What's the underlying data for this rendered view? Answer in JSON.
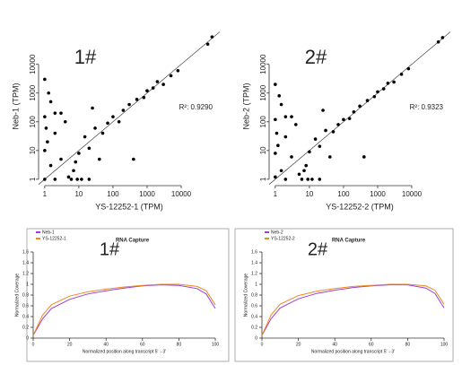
{
  "chart_data": [
    {
      "type": "scatter",
      "annotation": "1#",
      "xlabel": "YS-12252-1 (TPM)",
      "ylabel": "Neb-1 (TPM)",
      "r2_label": "R²: 0.9290",
      "log_x": true,
      "log_y": true,
      "xlim": [
        0.66,
        135000
      ],
      "ylim": [
        0.6,
        200000
      ],
      "xticks": [
        1,
        10,
        100,
        1000,
        10000
      ],
      "yticks": [
        1,
        10,
        100,
        1000,
        10000
      ],
      "color": "#000000",
      "x": [
        1,
        1.5,
        2,
        3,
        1.2,
        5,
        8,
        2,
        4,
        10,
        15,
        20,
        6,
        30,
        50,
        3,
        70,
        100,
        150,
        200,
        12,
        300,
        500,
        800,
        1000,
        25,
        1500,
        2000,
        3000,
        40,
        5000,
        8000,
        60000,
        80000,
        1,
        1.1,
        2,
        7,
        1.3,
        9,
        1,
        20,
        1,
        1.5,
        400
      ],
      "y": [
        1,
        3,
        1,
        5,
        20,
        1.2,
        4,
        40,
        100,
        8,
        30,
        12,
        1,
        60,
        40,
        200,
        90,
        150,
        100,
        250,
        1,
        400,
        600,
        700,
        1200,
        300,
        1500,
        2500,
        2000,
        5,
        4000,
        6000,
        50000,
        90000,
        10,
        60,
        200,
        2,
        1000,
        1,
        150,
        1,
        3000,
        500,
        5
      ]
    },
    {
      "type": "scatter",
      "annotation": "2#",
      "xlabel": "YS-12252-2 (TPM)",
      "ylabel": "Neb-2 (TPM)",
      "r2_label": "R²: 0.9323",
      "log_x": true,
      "log_y": true,
      "xlim": [
        0.66,
        135000
      ],
      "ylim": [
        0.6,
        200000
      ],
      "xticks": [
        1,
        10,
        100,
        1000,
        10000
      ],
      "yticks": [
        1,
        10,
        100,
        1000,
        10000
      ],
      "color": "#000000",
      "x": [
        1,
        1.5,
        2,
        3,
        1.2,
        5,
        8,
        2,
        4,
        10,
        15,
        20,
        6,
        30,
        50,
        3,
        70,
        100,
        150,
        200,
        12,
        300,
        500,
        800,
        1000,
        25,
        1500,
        2000,
        3000,
        40,
        5000,
        8000,
        60000,
        80000,
        1,
        1.1,
        2,
        7,
        1.3,
        9,
        1,
        20,
        1,
        1.5,
        400
      ],
      "y": [
        1.2,
        2,
        1,
        6,
        15,
        1.5,
        3,
        30,
        80,
        9,
        25,
        14,
        1,
        50,
        45,
        150,
        80,
        120,
        130,
        220,
        1,
        350,
        550,
        750,
        1100,
        250,
        1400,
        2200,
        2400,
        6,
        4500,
        7000,
        60000,
        85000,
        8,
        40,
        150,
        2,
        800,
        1,
        120,
        1,
        2000,
        400,
        6
      ]
    },
    {
      "type": "line",
      "title": "RNA Capture",
      "annotation": "1#",
      "xlabel": "Normalized position along transcript 5'→3'",
      "ylabel": "Normalized Coverage",
      "xlim": [
        0,
        100
      ],
      "ylim": [
        0,
        1.6
      ],
      "xticks": [
        0,
        20,
        40,
        60,
        80,
        100
      ],
      "yticks": [
        0,
        0.2,
        0.4,
        0.6,
        0.8,
        1,
        1.2,
        1.4,
        1.6
      ],
      "x": [
        0,
        5,
        10,
        20,
        30,
        40,
        50,
        60,
        70,
        80,
        90,
        95,
        100
      ],
      "series": [
        {
          "name": "Neb-1",
          "color": "#9b3fd6",
          "values": [
            0.05,
            0.35,
            0.55,
            0.72,
            0.82,
            0.88,
            0.93,
            0.97,
            0.99,
            0.98,
            0.92,
            0.82,
            0.55
          ]
        },
        {
          "name": "YS-12252-1",
          "color": "#f08a1c",
          "values": [
            0.05,
            0.42,
            0.62,
            0.78,
            0.86,
            0.91,
            0.95,
            0.98,
            1,
            1,
            0.96,
            0.88,
            0.62
          ]
        }
      ]
    },
    {
      "type": "line",
      "title": "RNA Capture",
      "annotation": "2#",
      "xlabel": "Normalized position along transcript 5'→3'",
      "ylabel": "Normalized Coverage",
      "xlim": [
        0,
        100
      ],
      "ylim": [
        0,
        1.6
      ],
      "xticks": [
        0,
        20,
        40,
        60,
        80,
        100
      ],
      "yticks": [
        0,
        0.2,
        0.4,
        0.6,
        0.8,
        1,
        1.2,
        1.4,
        1.6
      ],
      "x": [
        0,
        5,
        10,
        20,
        30,
        40,
        50,
        60,
        70,
        80,
        90,
        95,
        100
      ],
      "series": [
        {
          "name": "Neb-2",
          "color": "#9b3fd6",
          "values": [
            0.05,
            0.36,
            0.56,
            0.73,
            0.83,
            0.89,
            0.94,
            0.97,
            0.99,
            0.99,
            0.93,
            0.83,
            0.56
          ]
        },
        {
          "name": "YS-12252-2",
          "color": "#f08a1c",
          "values": [
            0.05,
            0.43,
            0.63,
            0.79,
            0.87,
            0.92,
            0.96,
            0.98,
            1,
            1,
            0.97,
            0.89,
            0.63
          ]
        }
      ]
    }
  ]
}
